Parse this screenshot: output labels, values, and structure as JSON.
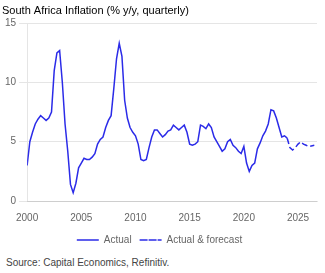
{
  "chart_data": {
    "type": "line",
    "title": "South Africa Inflation (% y/y, quarterly)",
    "source": "Source: Capital Economics, Refinitiv.",
    "xlim": [
      2000.0,
      2026.75
    ],
    "xticks": [
      2000,
      2005,
      2010,
      2015,
      2020,
      2025
    ],
    "ylim": [
      0,
      15
    ],
    "yticks": [
      0,
      5,
      10,
      15
    ],
    "grid": "y",
    "legend": "bottom",
    "series": [
      {
        "name": "Actual",
        "color": "#2B2BE8",
        "line_style": "solid",
        "x": [
          2000.0,
          2000.25,
          2000.5,
          2000.75,
          2001.0,
          2001.25,
          2001.5,
          2001.75,
          2002.0,
          2002.25,
          2002.5,
          2002.75,
          2003.0,
          2003.25,
          2003.5,
          2003.75,
          2004.0,
          2004.25,
          2004.5,
          2004.75,
          2005.0,
          2005.25,
          2005.5,
          2005.75,
          2006.0,
          2006.25,
          2006.5,
          2006.75,
          2007.0,
          2007.25,
          2007.5,
          2007.75,
          2008.0,
          2008.25,
          2008.5,
          2008.75,
          2009.0,
          2009.25,
          2009.5,
          2009.75,
          2010.0,
          2010.25,
          2010.5,
          2010.75,
          2011.0,
          2011.25,
          2011.5,
          2011.75,
          2012.0,
          2012.25,
          2012.5,
          2012.75,
          2013.0,
          2013.25,
          2013.5,
          2013.75,
          2014.0,
          2014.25,
          2014.5,
          2014.75,
          2015.0,
          2015.25,
          2015.5,
          2015.75,
          2016.0,
          2016.25,
          2016.5,
          2016.75,
          2017.0,
          2017.25,
          2017.5,
          2017.75,
          2018.0,
          2018.25,
          2018.5,
          2018.75,
          2019.0,
          2019.25,
          2019.5,
          2019.75,
          2020.0,
          2020.25,
          2020.5,
          2020.75,
          2021.0,
          2021.25,
          2021.5,
          2021.75,
          2022.0,
          2022.25,
          2022.5,
          2022.75,
          2023.0,
          2023.25,
          2023.5,
          2023.75,
          2024.0
        ],
        "values": [
          3.0,
          5.0,
          5.8,
          6.5,
          6.9,
          7.2,
          7.0,
          6.8,
          7.0,
          7.5,
          11.0,
          12.5,
          12.7,
          10.0,
          6.5,
          4.2,
          1.4,
          0.7,
          1.5,
          2.8,
          3.2,
          3.6,
          3.5,
          3.5,
          3.7,
          4.0,
          4.8,
          5.2,
          5.4,
          6.2,
          6.8,
          7.2,
          9.5,
          12.0,
          13.3,
          12.2,
          8.5,
          7.0,
          6.2,
          5.8,
          5.5,
          4.8,
          3.5,
          3.4,
          3.5,
          4.5,
          5.4,
          6.0,
          6.0,
          5.7,
          5.4,
          5.6,
          5.9,
          6.0,
          6.4,
          6.2,
          6.0,
          6.2,
          6.4,
          5.8,
          4.8,
          4.7,
          4.8,
          5.0,
          6.4,
          6.3,
          6.1,
          6.5,
          6.2,
          5.4,
          5.0,
          4.6,
          4.2,
          4.4,
          5.0,
          5.2,
          4.7,
          4.5,
          4.2,
          4.0,
          4.6,
          3.2,
          2.5,
          3.0,
          3.2,
          4.4,
          4.9,
          5.5,
          5.9,
          6.5,
          7.7,
          7.6,
          7.0,
          6.2,
          5.4,
          5.5,
          5.3
        ]
      },
      {
        "name": "Actual & forecast",
        "color": "#2B2BE8",
        "line_style": "dashed",
        "x": [
          2024.0,
          2024.25,
          2024.5,
          2024.75,
          2025.0,
          2025.25,
          2025.5,
          2025.75,
          2026.0,
          2026.5
        ],
        "values": [
          5.3,
          4.5,
          4.3,
          4.5,
          4.8,
          5.0,
          4.8,
          4.7,
          4.6,
          4.7
        ]
      }
    ]
  }
}
